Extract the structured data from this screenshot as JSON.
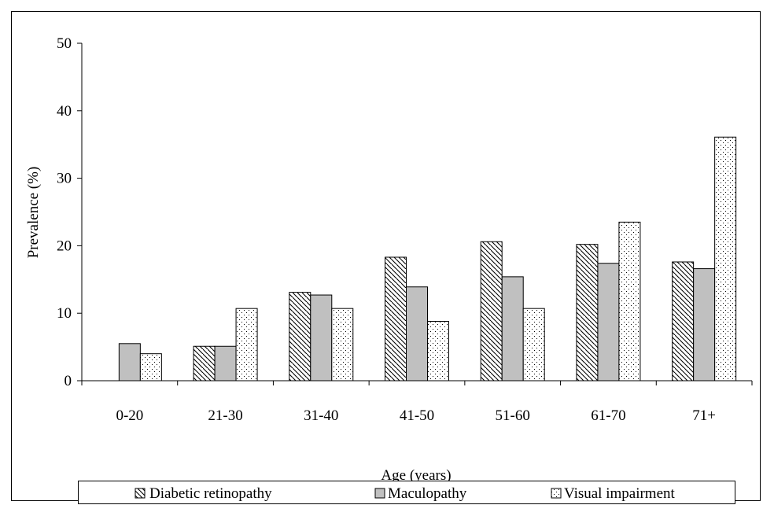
{
  "chart_data": {
    "type": "bar",
    "title": "",
    "xlabel": "Age (years)",
    "ylabel": "Prevalence (%)",
    "categories": [
      "0-20",
      "21-30",
      "31-40",
      "41-50",
      "51-60",
      "61-70",
      "71+"
    ],
    "ylim": [
      0,
      50
    ],
    "yticks": [
      0,
      10,
      20,
      30,
      40,
      50
    ],
    "grid": false,
    "legend_position": "bottom",
    "series": [
      {
        "name": "Diabetic retinopathy",
        "pattern": "diagonal-hatch",
        "color": "#000000",
        "values": [
          0,
          5.1,
          13.1,
          18.3,
          20.6,
          20.2,
          17.6
        ]
      },
      {
        "name": "Maculopathy",
        "pattern": "solid-gray",
        "color": "#c0c0c0",
        "values": [
          5.5,
          5.1,
          12.7,
          13.9,
          15.4,
          17.4,
          16.6
        ]
      },
      {
        "name": "Visual impairment",
        "pattern": "dots",
        "color": "#ffffff",
        "values": [
          4.0,
          10.7,
          10.7,
          8.8,
          10.7,
          23.5,
          36.1
        ]
      }
    ]
  }
}
